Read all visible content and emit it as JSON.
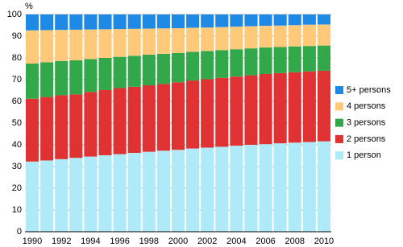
{
  "chart_data": {
    "type": "stacked_bar",
    "y_label": "%",
    "categories": [
      "1990",
      null,
      "1992",
      null,
      "1994",
      null,
      "1996",
      null,
      "1998",
      null,
      "2000",
      null,
      "2002",
      null,
      "2004",
      null,
      "2006",
      null,
      "2008",
      null,
      "2010"
    ],
    "series": [
      {
        "name": "1 person",
        "color": "#aeeaf8",
        "values": [
          32.3,
          32.8,
          33.4,
          34.0,
          34.6,
          35.2,
          35.7,
          36.3,
          36.8,
          37.3,
          37.7,
          38.3,
          38.7,
          39.1,
          39.6,
          40.0,
          40.3,
          40.7,
          41.0,
          41.3,
          41.6
        ]
      },
      {
        "name": "2 persons",
        "color": "#e03232",
        "values": [
          28.9,
          29.2,
          29.4,
          29.2,
          29.7,
          30.0,
          30.4,
          30.4,
          30.6,
          30.7,
          31.1,
          31.3,
          31.5,
          31.7,
          31.8,
          32.0,
          32.3,
          32.3,
          32.4,
          32.5,
          32.5
        ]
      },
      {
        "name": "3 persons",
        "color": "#33a84a",
        "values": [
          16.2,
          16.0,
          15.8,
          15.7,
          15.2,
          14.8,
          14.4,
          14.3,
          14.1,
          13.9,
          13.5,
          13.2,
          13.0,
          12.8,
          12.6,
          12.4,
          12.2,
          12.0,
          11.9,
          11.7,
          11.6
        ]
      },
      {
        "name": "4 persons",
        "color": "#ffc97a",
        "values": [
          15.3,
          14.8,
          14.3,
          14.1,
          13.6,
          13.2,
          12.8,
          12.4,
          12.0,
          11.7,
          11.4,
          11.1,
          10.8,
          10.6,
          10.4,
          10.2,
          10.0,
          9.9,
          9.8,
          9.8,
          9.7
        ]
      },
      {
        "name": "5+ persons",
        "color": "#1e8ae6",
        "values": [
          7.3,
          7.2,
          7.1,
          7.0,
          6.9,
          6.8,
          6.7,
          6.6,
          6.5,
          6.4,
          6.3,
          6.1,
          6.0,
          5.8,
          5.6,
          5.4,
          5.2,
          5.1,
          4.9,
          4.7,
          4.6
        ]
      }
    ],
    "ylim": [
      0,
      100
    ],
    "yticks": [
      0,
      10,
      20,
      30,
      40,
      50,
      60,
      70,
      80,
      90,
      100
    ],
    "grid": true,
    "legend": "right"
  }
}
